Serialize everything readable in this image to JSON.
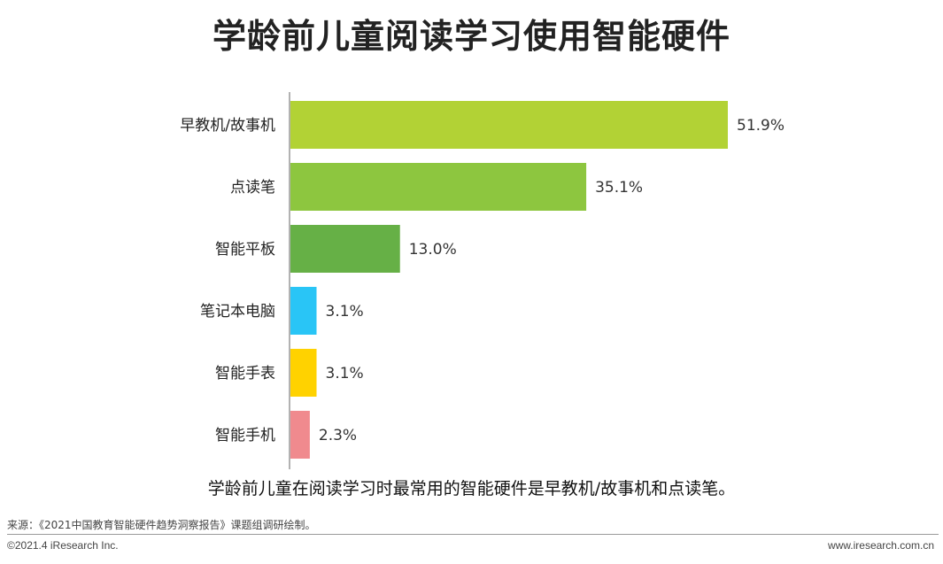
{
  "chart_data": {
    "type": "bar",
    "orientation": "horizontal",
    "title": "学龄前儿童阅读学习使用智能硬件",
    "categories": [
      "早教机/故事机",
      "点读笔",
      "智能平板",
      "笔记本电脑",
      "智能手表",
      "智能手机"
    ],
    "values": [
      51.9,
      35.1,
      13.0,
      3.1,
      3.1,
      2.3
    ],
    "value_labels": [
      "51.9%",
      "35.1%",
      "13.0%",
      "3.1%",
      "3.1%",
      "2.3%"
    ],
    "colors": [
      "#b2d235",
      "#8dc63f",
      "#66b046",
      "#29c5f6",
      "#ffd200",
      "#f08a8e"
    ],
    "unit": "%",
    "xlim": [
      0,
      60
    ],
    "grid": false,
    "legend": "none"
  },
  "subtitle": "学龄前儿童在阅读学习时最常用的智能硬件是早教机/故事机和点读笔。",
  "footer": {
    "source": "来源：《2021中国教育智能硬件趋势洞察报告》课题组调研绘制。",
    "copyright": "©2021.4 iResearch Inc.",
    "website": "www.iresearch.com.cn"
  }
}
